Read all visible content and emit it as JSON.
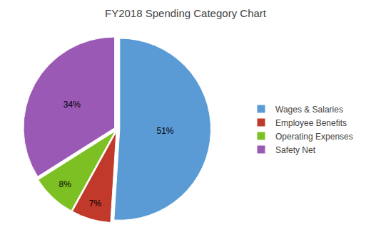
{
  "chart_data": {
    "type": "pie",
    "title": "FY2018 Spending Category Chart",
    "categories": [
      "Wages & Salaries",
      "Employee Benefits",
      "Operating Expenses",
      "Safety Net"
    ],
    "values": [
      51,
      7,
      8,
      34
    ],
    "value_labels": [
      "51%",
      "7%",
      "8%",
      "34%"
    ],
    "colors": [
      "#5B9BD5",
      "#C0392B",
      "#7DC024",
      "#9B59B6"
    ],
    "data_labels": true,
    "legend": "right"
  }
}
